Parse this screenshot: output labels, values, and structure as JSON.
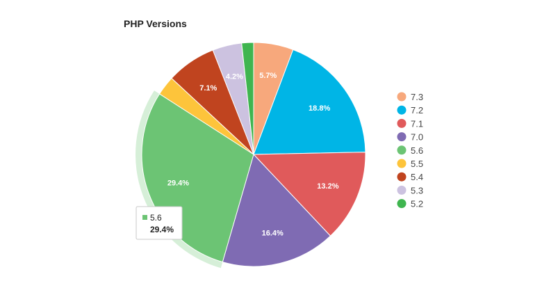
{
  "chart_data": {
    "type": "pie",
    "title": "PHP Versions",
    "categories": [
      "7.3",
      "7.2",
      "7.1",
      "7.0",
      "5.6",
      "5.5",
      "5.4",
      "5.3",
      "5.2"
    ],
    "values": [
      5.7,
      18.8,
      13.2,
      16.4,
      29.4,
      2.8,
      7.1,
      4.2,
      1.7
    ],
    "labels": [
      "5.7%",
      "18.8%",
      "13.2%",
      "16.4%",
      "29.4%",
      "",
      "7.1%",
      "4.2%",
      ""
    ],
    "colors": [
      "#f7a87c",
      "#00b5e6",
      "#e05a5b",
      "#7f6bb3",
      "#6cc474",
      "#fdc43b",
      "#c0441f",
      "#ccc2e0",
      "#3fb54f"
    ],
    "legend_position": "right",
    "highlighted": "5.6",
    "tooltip": {
      "name": "5.6",
      "value": "29.4%"
    }
  }
}
